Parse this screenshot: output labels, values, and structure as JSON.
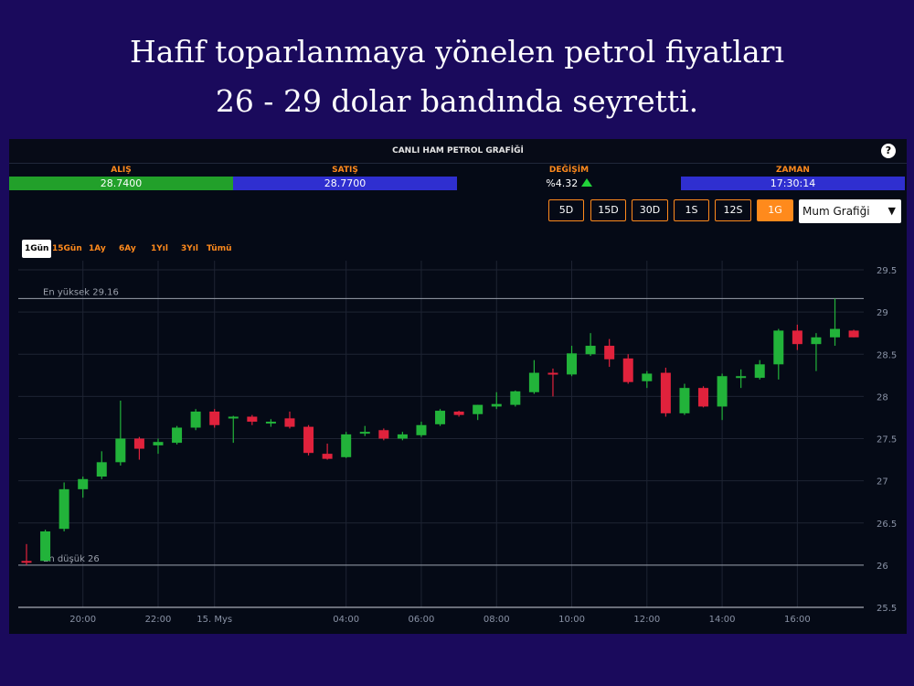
{
  "headline": {
    "line1": "Hafif toparlanmaya yönelen petrol fiyatları",
    "line2": "26 - 29 dolar bandında seyretti."
  },
  "panel": {
    "title": "CANLI HAM PETROL GRAFİĞİ",
    "help_label": "?"
  },
  "stats": [
    {
      "label": "ALIŞ",
      "value": "28.7400",
      "bg": "#22a02a"
    },
    {
      "label": "SATIŞ",
      "value": "28.7700",
      "bg": "#2f2fd0"
    },
    {
      "label": "DEĞİŞİM",
      "value": "%4.32",
      "bg": "#050a16"
    },
    {
      "label": "ZAMAN",
      "value": "17:30:14",
      "bg": "#2f2fd0"
    }
  ],
  "interval_buttons": [
    {
      "label": "5D",
      "active": false
    },
    {
      "label": "15D",
      "active": false
    },
    {
      "label": "30D",
      "active": false
    },
    {
      "label": "1S",
      "active": false
    },
    {
      "label": "12S",
      "active": false
    },
    {
      "label": "1G",
      "active": true
    }
  ],
  "chart_type_select": {
    "value": "Mum Grafiği",
    "arrow": "▼"
  },
  "range_tabs": [
    {
      "label": "1Gün",
      "active": true
    },
    {
      "label": "15Gün",
      "active": false
    },
    {
      "label": "1Ay",
      "active": false
    },
    {
      "label": "6Ay",
      "active": false
    },
    {
      "label": "1Yıl",
      "active": false
    },
    {
      "label": "3Yıl",
      "active": false
    },
    {
      "label": "Tümü",
      "active": false
    }
  ],
  "colors": {
    "up": "#22b33a",
    "down": "#e0223c",
    "accent": "#ff8a1c",
    "grid": "#1e2433"
  },
  "chart_data": {
    "type": "candlestick",
    "ylim": [
      25.5,
      29.5
    ],
    "yticks": [
      "25.5",
      "26",
      "26.5",
      "27",
      "27.5",
      "28",
      "28.5",
      "29",
      "29.5"
    ],
    "xticks": [
      {
        "label": "20:00",
        "idx": 3
      },
      {
        "label": "22:00",
        "idx": 7
      },
      {
        "label": "15. Mys",
        "idx": 10
      },
      {
        "label": "04:00",
        "idx": 17
      },
      {
        "label": "06:00",
        "idx": 21
      },
      {
        "label": "08:00",
        "idx": 25
      },
      {
        "label": "10:00",
        "idx": 29
      },
      {
        "label": "12:00",
        "idx": 33
      },
      {
        "label": "14:00",
        "idx": 37
      },
      {
        "label": "16:00",
        "idx": 41
      }
    ],
    "high_line": {
      "label": "En yüksek 29.16",
      "value": 29.16
    },
    "low_line": {
      "label": "En düşük 26",
      "value": 26.0
    },
    "candles": [
      {
        "o": 26.05,
        "h": 26.25,
        "l": 26.0,
        "c": 26.03
      },
      {
        "o": 26.05,
        "h": 26.42,
        "l": 26.05,
        "c": 26.4
      },
      {
        "o": 26.43,
        "h": 26.98,
        "l": 26.4,
        "c": 26.9
      },
      {
        "o": 26.9,
        "h": 27.05,
        "l": 26.8,
        "c": 27.02
      },
      {
        "o": 27.05,
        "h": 27.35,
        "l": 27.02,
        "c": 27.22
      },
      {
        "o": 27.22,
        "h": 27.95,
        "l": 27.18,
        "c": 27.5
      },
      {
        "o": 27.5,
        "h": 27.52,
        "l": 27.25,
        "c": 27.38
      },
      {
        "o": 27.42,
        "h": 27.5,
        "l": 27.32,
        "c": 27.46
      },
      {
        "o": 27.45,
        "h": 27.65,
        "l": 27.43,
        "c": 27.63
      },
      {
        "o": 27.63,
        "h": 27.85,
        "l": 27.6,
        "c": 27.82
      },
      {
        "o": 27.82,
        "h": 27.85,
        "l": 27.63,
        "c": 27.66
      },
      {
        "o": 27.74,
        "h": 27.77,
        "l": 27.45,
        "c": 27.76
      },
      {
        "o": 27.76,
        "h": 27.78,
        "l": 27.66,
        "c": 27.7
      },
      {
        "o": 27.69,
        "h": 27.73,
        "l": 27.64,
        "c": 27.7
      },
      {
        "o": 27.74,
        "h": 27.82,
        "l": 27.62,
        "c": 27.64
      },
      {
        "o": 27.64,
        "h": 27.66,
        "l": 27.3,
        "c": 27.33
      },
      {
        "o": 27.32,
        "h": 27.44,
        "l": 27.25,
        "c": 27.26
      },
      {
        "o": 27.28,
        "h": 27.58,
        "l": 27.27,
        "c": 27.55
      },
      {
        "o": 27.56,
        "h": 27.65,
        "l": 27.53,
        "c": 27.58
      },
      {
        "o": 27.6,
        "h": 27.62,
        "l": 27.48,
        "c": 27.5
      },
      {
        "o": 27.5,
        "h": 27.58,
        "l": 27.48,
        "c": 27.55
      },
      {
        "o": 27.54,
        "h": 27.7,
        "l": 27.52,
        "c": 27.66
      },
      {
        "o": 27.67,
        "h": 27.85,
        "l": 27.65,
        "c": 27.83
      },
      {
        "o": 27.82,
        "h": 27.83,
        "l": 27.76,
        "c": 27.78
      },
      {
        "o": 27.79,
        "h": 27.9,
        "l": 27.72,
        "c": 27.9
      },
      {
        "o": 27.88,
        "h": 28.05,
        "l": 27.85,
        "c": 27.91
      },
      {
        "o": 27.9,
        "h": 28.07,
        "l": 27.88,
        "c": 28.06
      },
      {
        "o": 28.05,
        "h": 28.43,
        "l": 28.03,
        "c": 28.28
      },
      {
        "o": 28.28,
        "h": 28.33,
        "l": 28.0,
        "c": 28.26
      },
      {
        "o": 28.26,
        "h": 28.6,
        "l": 28.24,
        "c": 28.51
      },
      {
        "o": 28.5,
        "h": 28.75,
        "l": 28.48,
        "c": 28.6
      },
      {
        "o": 28.6,
        "h": 28.68,
        "l": 28.35,
        "c": 28.44
      },
      {
        "o": 28.45,
        "h": 28.5,
        "l": 28.15,
        "c": 28.17
      },
      {
        "o": 28.18,
        "h": 28.3,
        "l": 28.1,
        "c": 28.27
      },
      {
        "o": 28.28,
        "h": 28.34,
        "l": 27.76,
        "c": 27.8
      },
      {
        "o": 27.8,
        "h": 28.15,
        "l": 27.78,
        "c": 28.1
      },
      {
        "o": 28.1,
        "h": 28.12,
        "l": 27.87,
        "c": 27.88
      },
      {
        "o": 27.88,
        "h": 28.27,
        "l": 27.72,
        "c": 28.24
      },
      {
        "o": 28.22,
        "h": 28.32,
        "l": 28.1,
        "c": 28.24
      },
      {
        "o": 28.22,
        "h": 28.43,
        "l": 28.2,
        "c": 28.38
      },
      {
        "o": 28.38,
        "h": 28.8,
        "l": 28.2,
        "c": 28.78
      },
      {
        "o": 28.78,
        "h": 28.85,
        "l": 28.55,
        "c": 28.62
      },
      {
        "o": 28.62,
        "h": 28.75,
        "l": 28.3,
        "c": 28.7
      },
      {
        "o": 28.7,
        "h": 29.16,
        "l": 28.6,
        "c": 28.8
      },
      {
        "o": 28.78,
        "h": 28.79,
        "l": 28.7,
        "c": 28.7
      }
    ]
  }
}
